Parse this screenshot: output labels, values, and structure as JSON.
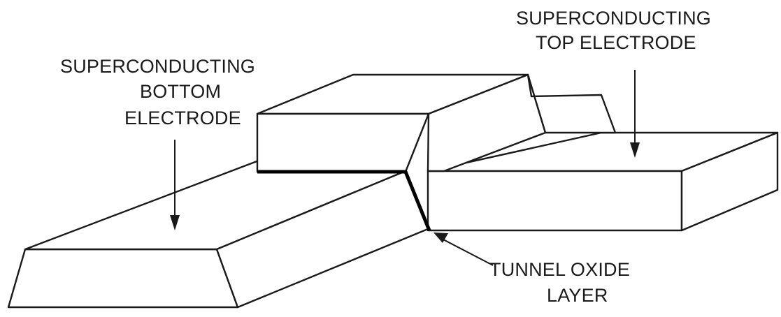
{
  "labels": {
    "top_electrode": {
      "line1": "SUPERCONDUCTING",
      "line2": "TOP ELECTRODE"
    },
    "bottom_electrode": {
      "line1": "SUPERCONDUCTING",
      "line2": "BOTTOM",
      "line3": "ELECTRODE"
    },
    "tunnel_oxide": {
      "line1": "TUNNEL OXIDE",
      "line2": "LAYER"
    }
  }
}
